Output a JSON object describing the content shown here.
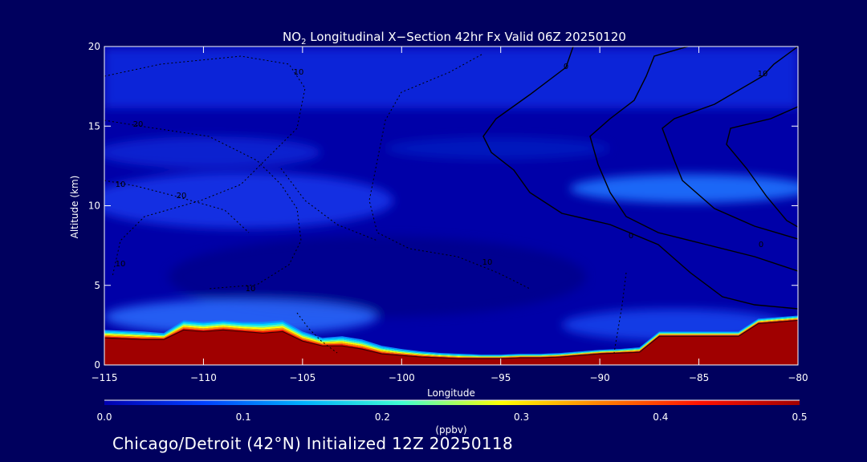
{
  "chart_data": {
    "type": "heatmap",
    "title": "NO2 Longitudinal X-Section 42hr  Fx Valid 06Z 20250120",
    "title_parts": {
      "pre": "NO",
      "sub": "2",
      "post": " Longitudinal X−Section 42hr  Fx Valid 06Z 20250120"
    },
    "xlabel": "Longitude",
    "ylabel": "Altitude (km)",
    "xlim": [
      -115,
      -80
    ],
    "ylim": [
      0,
      20
    ],
    "x_ticks": [
      -115,
      -110,
      -105,
      -100,
      -95,
      -90,
      -85,
      -80
    ],
    "x_tick_labels": [
      "−115",
      "−110",
      "−105",
      "−100",
      "−95",
      "−90",
      "−85",
      "−80"
    ],
    "y_ticks": [
      0,
      5,
      10,
      15,
      20
    ],
    "y_tick_labels": [
      "0",
      "5",
      "10",
      "15",
      "20"
    ],
    "colorbar": {
      "label": "(ppbv)",
      "range": [
        0.0,
        0.5
      ],
      "ticks": [
        0.0,
        0.1,
        0.2,
        0.3,
        0.4,
        0.5
      ],
      "tick_labels": [
        "0.0",
        "0.1",
        "0.2",
        "0.3",
        "0.4",
        "0.5"
      ],
      "colors": [
        "#0000b0",
        "#0040ff",
        "#00b0ff",
        "#40ffd0",
        "#ffff00",
        "#ff8000",
        "#ff1000",
        "#a00000"
      ]
    },
    "terrain": {
      "x": [
        -115,
        -113,
        -112,
        -111,
        -110,
        -109,
        -108,
        -107,
        -106,
        -105,
        -104,
        -103,
        -102,
        -101,
        -100,
        -99,
        -98,
        -97,
        -96,
        -95,
        -94,
        -93,
        -92,
        -91,
        -90,
        -89,
        -88,
        -87,
        -86,
        -85,
        -84,
        -83,
        -82,
        -81,
        -80
      ],
      "y": [
        1.7,
        1.6,
        1.6,
        2.2,
        2.1,
        2.2,
        2.1,
        2.0,
        2.1,
        1.5,
        1.2,
        1.2,
        1.0,
        0.7,
        0.6,
        0.5,
        0.45,
        0.4,
        0.4,
        0.4,
        0.45,
        0.45,
        0.5,
        0.6,
        0.7,
        0.75,
        0.8,
        1.8,
        1.8,
        1.8,
        1.8,
        1.8,
        2.6,
        2.7,
        2.8
      ]
    },
    "concentration_bands": [
      {
        "x": [
          -115,
          -113,
          -112,
          -111,
          -110,
          -109,
          -108,
          -107,
          -106,
          -105,
          -104,
          -103,
          -102,
          -101,
          -100,
          -99,
          -98,
          -97,
          -96,
          -95,
          -94,
          -93,
          -92,
          -91,
          -90,
          -89,
          -88,
          -87,
          -86,
          -85,
          -84,
          -83,
          -82,
          -81,
          -80
        ],
        "thickness_km": [
          0.5,
          0.5,
          0.4,
          0.6,
          0.6,
          0.6,
          0.6,
          0.7,
          0.7,
          0.6,
          0.5,
          0.6,
          0.6,
          0.5,
          0.4,
          0.35,
          0.3,
          0.3,
          0.25,
          0.25,
          0.25,
          0.25,
          0.25,
          0.25,
          0.25,
          0.25,
          0.3,
          0.3,
          0.3,
          0.3,
          0.3,
          0.3,
          0.3,
          0.3,
          0.3
        ]
      }
    ],
    "surface_fill_value": 0.5,
    "contours": {
      "solid_labels": [
        "0",
        "10",
        "0",
        "0"
      ],
      "dotted_labels": [
        "10",
        "20",
        "10",
        "10",
        "10",
        "10",
        "20"
      ]
    },
    "grid": false,
    "legend": "colorbar-bottom"
  },
  "caption": "Chicago/Detroit (42°N) Initialized 12Z 20250118"
}
